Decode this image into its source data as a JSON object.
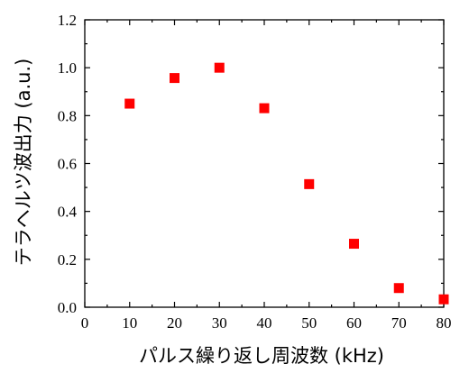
{
  "chart_data": {
    "type": "scatter",
    "title": "",
    "xlabel": "パルス繰り返し周波数 (kHz)",
    "ylabel": "テラヘルツ波出力 (a.u.)",
    "xlim": [
      0,
      80
    ],
    "ylim": [
      0,
      1.2
    ],
    "x_ticks": [
      "0",
      "10",
      "20",
      "30",
      "40",
      "50",
      "60",
      "70",
      "80"
    ],
    "y_ticks": [
      "0.0",
      "0.2",
      "0.4",
      "0.6",
      "0.8",
      "1.0",
      "1.2"
    ],
    "grid": false,
    "legend": "none",
    "marker": "square",
    "series": [
      {
        "x": [
          10,
          20,
          30,
          40,
          50,
          60,
          70,
          80
        ],
        "y": [
          0.85,
          0.957,
          1.0,
          0.831,
          0.514,
          0.265,
          0.08,
          0.033
        ]
      }
    ],
    "colors": {
      "point": "#ff0000",
      "axis": "#000000"
    }
  }
}
